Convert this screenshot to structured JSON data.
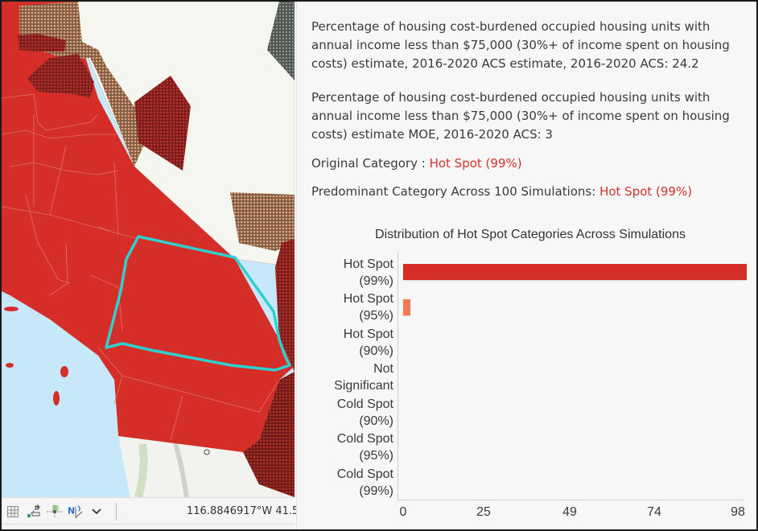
{
  "map": {
    "coordinates": "116.8846917°W 41.5",
    "colors": {
      "hot_spot_99": "#d52d27",
      "hot_spot_95_pattern": "#8b2420",
      "hot_spot_90_pattern": "#a8714f",
      "not_significant": "#f7f7f3",
      "ocean": "#c7e8f8",
      "selection_outline": "#2fd0d0"
    },
    "toolbar_icons": [
      "grid-icon",
      "snapping-icon",
      "grid-guides-icon",
      "north-arrow-icon",
      "chevron-down-icon"
    ]
  },
  "popup": {
    "field1": "Percentage of housing cost-burdened occupied housing units with annual income less than $75,000 (30%+ of income spent on housing costs) estimate, 2016-2020 ACS estimate, 2016-2020 ACS: 24.2",
    "field2": "Percentage of housing cost-burdened occupied housing units with annual income less than $75,000 (30%+ of income spent on housing costs) estimate MOE, 2016-2020 ACS: 3",
    "original_category_label": "Original Category : ",
    "original_category_value": "Hot Spot (99%)",
    "predominant_category_label": "Predominant Category Across 100 Simulations: ",
    "predominant_category_value": "Hot Spot (99%)"
  },
  "chart_data": {
    "type": "bar",
    "orientation": "horizontal",
    "title": "Distribution of Hot Spot Categories Across Simulations",
    "categories": [
      "Hot Spot (99%)",
      "Hot Spot (95%)",
      "Hot Spot (90%)",
      "Not Significant",
      "Cold Spot (90%)",
      "Cold Spot (95%)",
      "Cold Spot (99%)"
    ],
    "category_lines": [
      [
        "Hot Spot",
        "(99%)"
      ],
      [
        "Hot Spot",
        "(95%)"
      ],
      [
        "Hot Spot",
        "(90%)"
      ],
      [
        "Not",
        "Significant"
      ],
      [
        "Cold Spot",
        "(90%)"
      ],
      [
        "Cold Spot",
        "(95%)"
      ],
      [
        "Cold Spot",
        "(99%)"
      ]
    ],
    "values": [
      98,
      2,
      0,
      0,
      0,
      0,
      0
    ],
    "colors": [
      "#d52d27",
      "#f07a53",
      "#f7b08e",
      "#e8e8e8",
      "#9bc4dd",
      "#5a8fc2",
      "#2c5aa0"
    ],
    "x_ticks": [
      "0",
      "25",
      "49",
      "74",
      "98"
    ],
    "xlim": [
      0,
      98
    ],
    "xlabel": "",
    "ylabel": "",
    "grid": false,
    "legend": "none"
  }
}
